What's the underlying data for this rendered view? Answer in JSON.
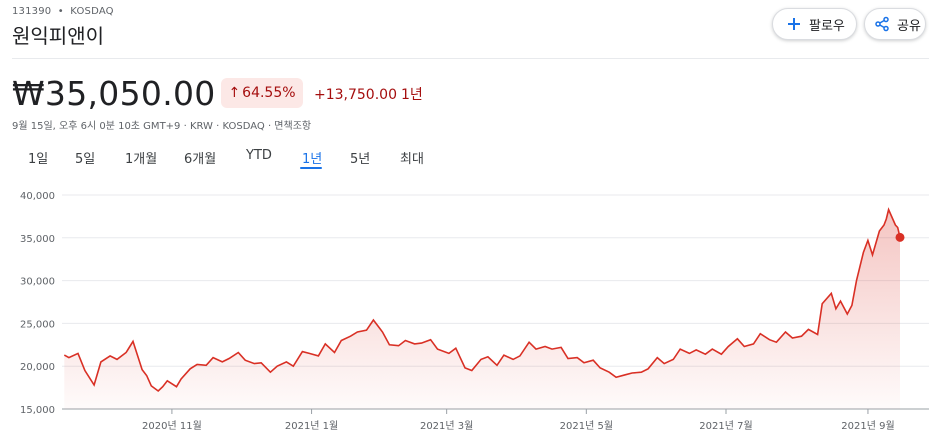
{
  "header": {
    "ticker": "131390",
    "separator": "•",
    "exchange": "KOSDAQ",
    "company": "원익피앤이"
  },
  "actions": {
    "follow_label": "팔로우",
    "follow_icon": "plus-icon",
    "share_label": "공유",
    "share_icon": "share-icon"
  },
  "quote": {
    "price": "₩35,050.00",
    "change_pct": "64.55%",
    "change_abs": "+13,750.00",
    "change_period": "1년",
    "meta": "9월 15일, 오후 6시 0분 10초 GMT+9 · KRW · KOSDAQ · 면책조항"
  },
  "colors": {
    "accent": "#1a73e8",
    "negative_text": "#a50e0e",
    "badge_bg": "#fce8e6",
    "line": "#d93025"
  },
  "tabs": [
    {
      "label": "1일",
      "active": false
    },
    {
      "label": "5일",
      "active": false
    },
    {
      "label": "1개월",
      "active": false
    },
    {
      "label": "6개월",
      "active": false
    },
    {
      "label": "YTD",
      "active": false
    },
    {
      "label": "1년",
      "active": true
    },
    {
      "label": "5년",
      "active": false
    },
    {
      "label": "최대",
      "active": false
    }
  ],
  "chart_data": {
    "type": "area",
    "ylim": [
      15000,
      40000
    ],
    "y_ticks": [
      "40,000",
      "35,000",
      "30,000",
      "25,000",
      "20,000",
      "15,000"
    ],
    "y_tick_values": [
      40000,
      35000,
      30000,
      25000,
      20000,
      15000
    ],
    "x_tick_labels": [
      "2020년 11월",
      "2021년 1월",
      "2021년 3월",
      "2021년 5월",
      "2021년 7월",
      "2021년 9월"
    ],
    "x_tick_dates": [
      "2020-11-01",
      "2021-01-01",
      "2021-03-01",
      "2021-05-01",
      "2021-07-01",
      "2021-09-01"
    ],
    "grid": true,
    "x": [
      "2020-09-15",
      "2020-09-17",
      "2020-09-21",
      "2020-09-24",
      "2020-09-28",
      "2020-10-01",
      "2020-10-05",
      "2020-10-08",
      "2020-10-12",
      "2020-10-15",
      "2020-10-19",
      "2020-10-21",
      "2020-10-23",
      "2020-10-26",
      "2020-10-28",
      "2020-10-30",
      "2020-11-03",
      "2020-11-05",
      "2020-11-09",
      "2020-11-12",
      "2020-11-16",
      "2020-11-19",
      "2020-11-23",
      "2020-11-26",
      "2020-11-30",
      "2020-12-03",
      "2020-12-07",
      "2020-12-10",
      "2020-12-14",
      "2020-12-17",
      "2020-12-21",
      "2020-12-24",
      "2020-12-28",
      "2020-12-31",
      "2021-01-04",
      "2021-01-07",
      "2021-01-11",
      "2021-01-14",
      "2021-01-18",
      "2021-01-21",
      "2021-01-25",
      "2021-01-28",
      "2021-02-01",
      "2021-02-04",
      "2021-02-08",
      "2021-02-11",
      "2021-02-15",
      "2021-02-18",
      "2021-02-22",
      "2021-02-25",
      "2021-03-02",
      "2021-03-05",
      "2021-03-09",
      "2021-03-12",
      "2021-03-16",
      "2021-03-19",
      "2021-03-23",
      "2021-03-26",
      "2021-03-30",
      "2021-04-02",
      "2021-04-06",
      "2021-04-09",
      "2021-04-13",
      "2021-04-16",
      "2021-04-20",
      "2021-04-23",
      "2021-04-27",
      "2021-04-30",
      "2021-05-04",
      "2021-05-07",
      "2021-05-11",
      "2021-05-14",
      "2021-05-18",
      "2021-05-21",
      "2021-05-25",
      "2021-05-28",
      "2021-06-01",
      "2021-06-04",
      "2021-06-08",
      "2021-06-11",
      "2021-06-15",
      "2021-06-18",
      "2021-06-22",
      "2021-06-25",
      "2021-06-29",
      "2021-07-02",
      "2021-07-06",
      "2021-07-09",
      "2021-07-13",
      "2021-07-16",
      "2021-07-20",
      "2021-07-23",
      "2021-07-27",
      "2021-07-30",
      "2021-08-03",
      "2021-08-06",
      "2021-08-10",
      "2021-08-12",
      "2021-08-16",
      "2021-08-18",
      "2021-08-20",
      "2021-08-23",
      "2021-08-25",
      "2021-08-27",
      "2021-08-30",
      "2021-09-01",
      "2021-09-03",
      "2021-09-06",
      "2021-09-08",
      "2021-09-09",
      "2021-09-10",
      "2021-09-13",
      "2021-09-14",
      "2021-09-15"
    ],
    "values": [
      21300,
      21000,
      21500,
      19500,
      17800,
      20500,
      21200,
      20800,
      21600,
      22900,
      19600,
      18900,
      17700,
      17100,
      17600,
      18300,
      17600,
      18500,
      19700,
      20200,
      20100,
      21000,
      20500,
      20900,
      21600,
      20700,
      20300,
      20400,
      19300,
      20000,
      20500,
      20000,
      21700,
      21500,
      21200,
      22600,
      21600,
      23000,
      23500,
      24000,
      24200,
      25400,
      24000,
      22500,
      22400,
      23000,
      22600,
      22700,
      23100,
      22000,
      21500,
      22100,
      19800,
      19500,
      20800,
      21100,
      20100,
      21300,
      20800,
      21200,
      22800,
      22000,
      22300,
      22000,
      22200,
      20900,
      21000,
      20400,
      20700,
      19800,
      19300,
      18700,
      19000,
      19200,
      19300,
      19700,
      21000,
      20300,
      20800,
      22000,
      21500,
      21900,
      21400,
      22000,
      21400,
      22300,
      23200,
      22300,
      22600,
      23800,
      23100,
      22800,
      24000,
      23300,
      23500,
      24300,
      23700,
      27300,
      28500,
      26700,
      27600,
      26100,
      27100,
      30000,
      33300,
      34700,
      33000,
      35800,
      36500,
      37200,
      38300,
      36500,
      36200,
      35050
    ]
  }
}
